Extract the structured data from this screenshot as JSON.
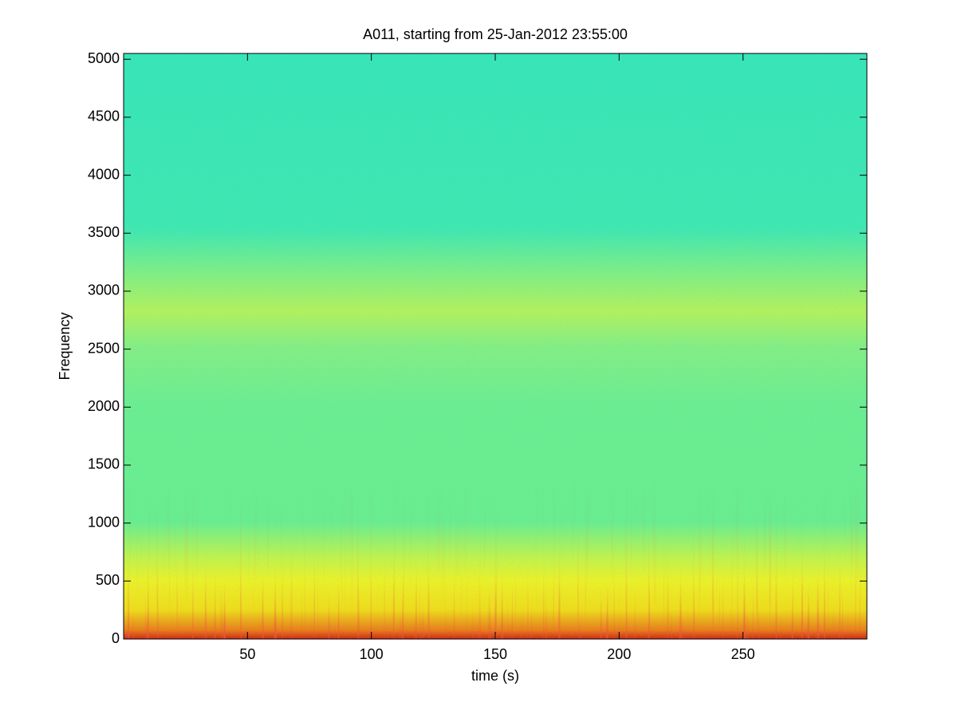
{
  "chart_data": {
    "type": "spectrogram",
    "title": "A011, starting from 25-Jan-2012 23:55:00",
    "x_label": "time (s)",
    "y_label": "Frequency",
    "xlim": [
      0,
      300
    ],
    "xticks": [
      50,
      100,
      150,
      200,
      250
    ],
    "ylim": [
      0,
      5050
    ],
    "yticks": [
      0,
      500,
      1000,
      1500,
      2000,
      2500,
      3000,
      3500,
      4000,
      4500,
      5000
    ],
    "colormap": "jet"
  }
}
